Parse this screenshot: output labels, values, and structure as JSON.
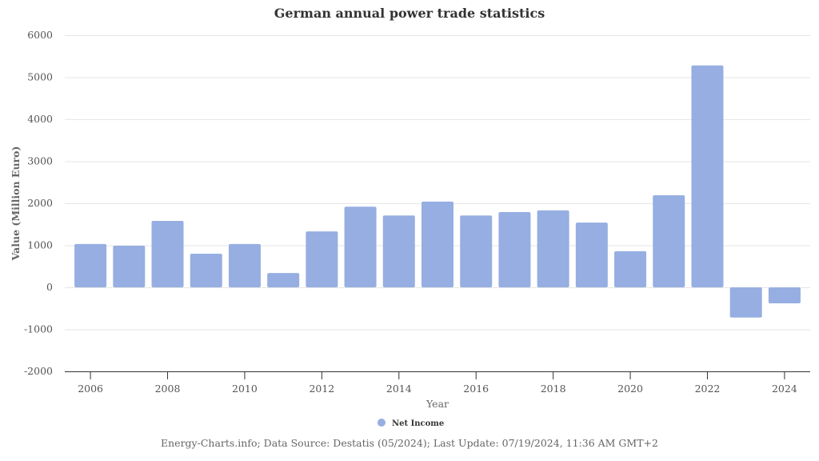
{
  "chart_data": {
    "type": "bar",
    "title": "German annual power trade statistics",
    "xlabel": "Year",
    "ylabel": "Value (Million Euro)",
    "ylim": [
      -2000,
      6000
    ],
    "yticks": [
      -2000,
      -1000,
      0,
      1000,
      2000,
      3000,
      4000,
      5000,
      6000
    ],
    "xtick_labels": [
      "2006",
      "2008",
      "2010",
      "2012",
      "2014",
      "2016",
      "2018",
      "2020",
      "2022",
      "2024"
    ],
    "categories": [
      "2006",
      "2007",
      "2008",
      "2009",
      "2010",
      "2011",
      "2012",
      "2013",
      "2014",
      "2015",
      "2016",
      "2017",
      "2018",
      "2019",
      "2020",
      "2021",
      "2022",
      "2023",
      "2024"
    ],
    "series": [
      {
        "name": "Net Income",
        "color": "#96aee1",
        "values": [
          1030,
          990,
          1580,
          800,
          1030,
          340,
          1330,
          1920,
          1710,
          2040,
          1710,
          1790,
          1830,
          1540,
          860,
          2190,
          5280,
          -720,
          -380
        ]
      }
    ],
    "grid": true,
    "legend": "bottom-center"
  },
  "footer": "Energy-Charts.info; Data Source: Destatis (05/2024); Last Update: 07/19/2024, 11:36 AM GMT+2"
}
